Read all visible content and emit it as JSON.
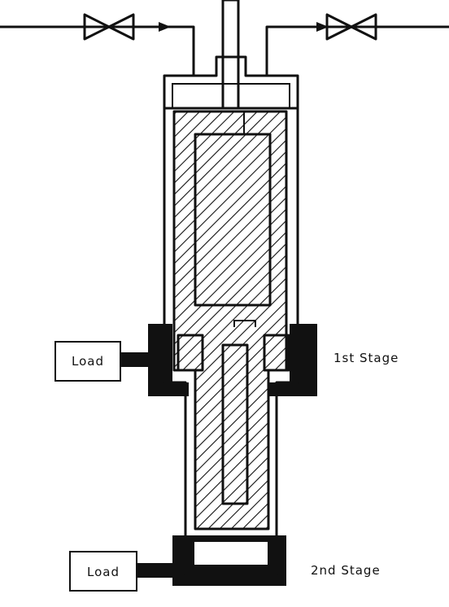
{
  "labels": {
    "load_1": "Load",
    "load_2": "Load",
    "stage_1": "1st Stage",
    "stage_2": "2nd Stage"
  },
  "colors": {
    "ink": "#111111",
    "paper": "#ffffff"
  }
}
